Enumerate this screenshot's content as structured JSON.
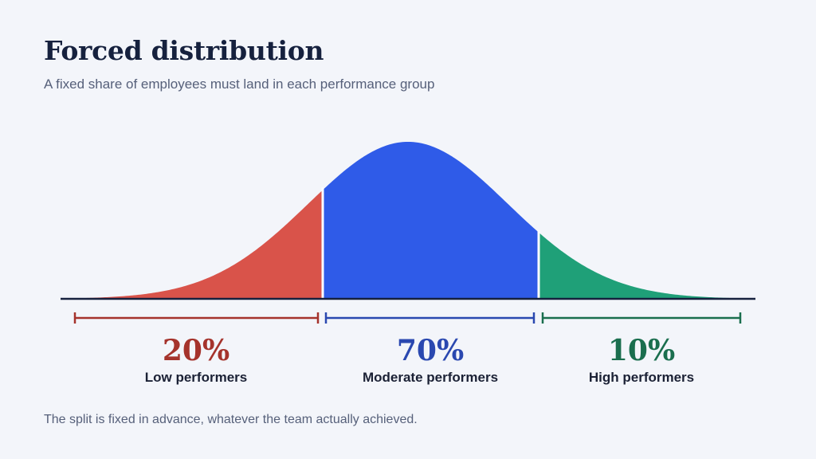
{
  "title": "Forced distribution",
  "subtitle": "A fixed share of employees must land in each performance group",
  "footnote": "The split is fixed in advance, whatever the team actually achieved.",
  "groups": [
    {
      "percent": "20%",
      "label": "Low performers",
      "share": 0.2,
      "color": "#d9534a",
      "bracket_color": "#a5332c"
    },
    {
      "percent": "70%",
      "label": "Moderate performers",
      "share": 0.7,
      "color": "#2f5be8",
      "bracket_color": "#2a48b0"
    },
    {
      "percent": "10%",
      "label": "High performers",
      "share": 0.1,
      "color": "#1fa078",
      "bracket_color": "#1a6e4e"
    }
  ],
  "colors": {
    "baseline": "#16213e",
    "text_dark": "#1b2135",
    "text_muted": "#56607a",
    "background": "#f3f5fa"
  }
}
